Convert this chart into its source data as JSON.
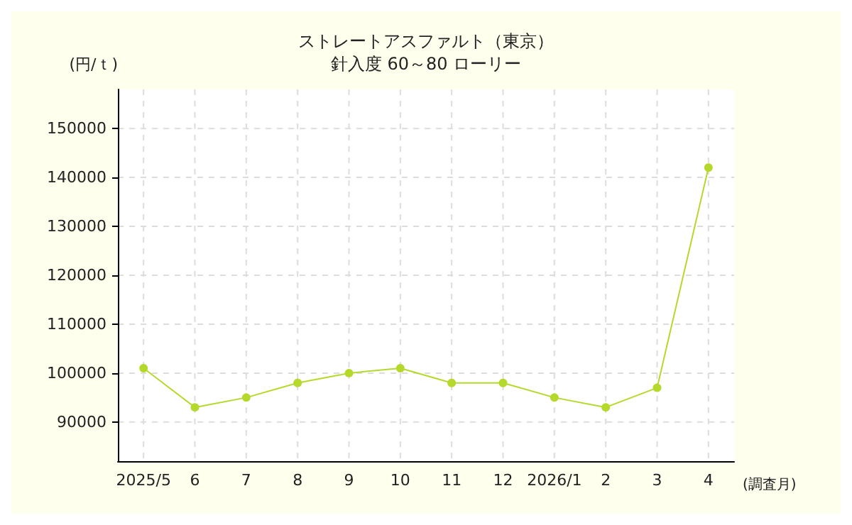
{
  "chart_data": {
    "type": "line",
    "title": "ストレートアスファルト（東京）",
    "subtitle": "針入度 60～80 ローリー",
    "xlabel": "(調査月)",
    "ylabel": "(円/ｔ)",
    "categories": [
      "2025/5",
      "6",
      "7",
      "8",
      "9",
      "10",
      "11",
      "12",
      "2026/1",
      "2",
      "3",
      "4"
    ],
    "series": [
      {
        "color": "#b5d92b",
        "values": [
          101000,
          93000,
          95000,
          98000,
          100000,
          101000,
          98000,
          98000,
          95000,
          93000,
          97000,
          142000
        ]
      }
    ],
    "ylim": [
      82000,
      158000
    ],
    "yticks": [
      90000,
      100000,
      110000,
      120000,
      130000,
      140000,
      150000
    ],
    "grid": true,
    "marker": "circle",
    "line_style": "solid"
  }
}
